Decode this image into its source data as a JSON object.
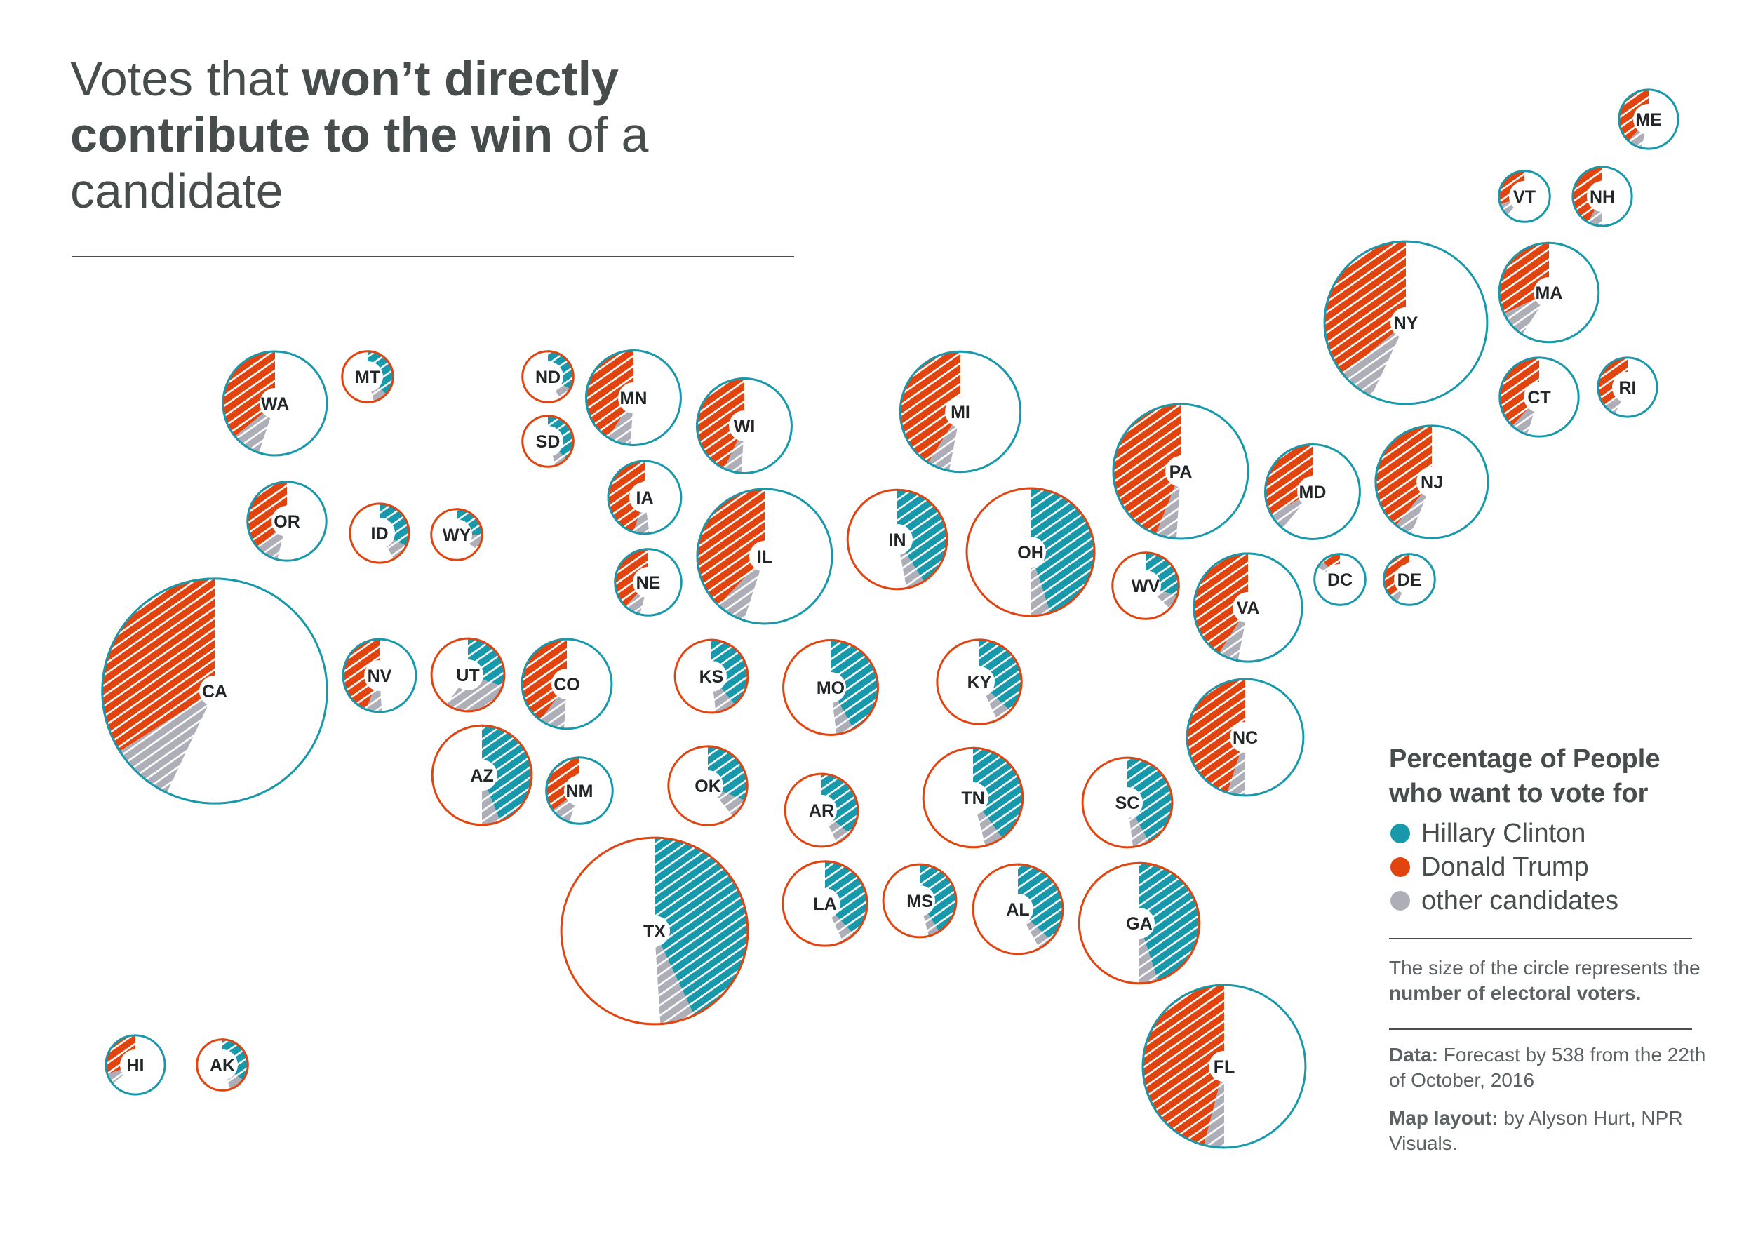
{
  "title": {
    "part1": "Votes that ",
    "bold": "won’t directly contribute to the win",
    "part2": " of a candidate"
  },
  "legend": {
    "title_line1": "Percentage of People",
    "title_line2": "who want to vote for",
    "items": [
      {
        "label": "Hillary Clinton",
        "color": "#1798ab"
      },
      {
        "label": "Donald Trump",
        "color": "#e2440f"
      },
      {
        "label": "other candidates",
        "color": "#adaeb7"
      }
    ]
  },
  "notes": {
    "size_plain": "The size of the circle represents the ",
    "size_bold": "number of electoral voters.",
    "data_label": "Data:",
    "data_text": " Forecast by 538 from the 22th of October, 2016",
    "layout_label": "Map layout:",
    "layout_text": " by Alyson Hurt, NPR Visuals."
  },
  "chart_data": {
    "type": "pie",
    "description_note": "Each circle is a state; its area represents electoral votes. The outline color is the forecast winner; the hatched slices show vote shares that would not count toward the win (loser's share plus other candidates). Values are approximate percentages read from the slices.",
    "colors": {
      "clinton": "#1798ab",
      "trump": "#e2440f",
      "other": "#adaeb7"
    },
    "states": [
      {
        "code": "ME",
        "ev": 4,
        "winner": "clinton",
        "clinton": 0,
        "trump": 38,
        "other": 8
      },
      {
        "code": "VT",
        "ev": 3,
        "winner": "clinton",
        "clinton": 0,
        "trump": 30,
        "other": 8
      },
      {
        "code": "NH",
        "ev": 4,
        "winner": "clinton",
        "clinton": 0,
        "trump": 42,
        "other": 8
      },
      {
        "code": "MA",
        "ev": 11,
        "winner": "clinton",
        "clinton": 0,
        "trump": 32,
        "other": 9
      },
      {
        "code": "NY",
        "ev": 29,
        "winner": "clinton",
        "clinton": 0,
        "trump": 36,
        "other": 7
      },
      {
        "code": "CT",
        "ev": 7,
        "winner": "clinton",
        "clinton": 0,
        "trump": 38,
        "other": 7
      },
      {
        "code": "RI",
        "ev": 4,
        "winner": "clinton",
        "clinton": 0,
        "trump": 36,
        "other": 7
      },
      {
        "code": "WA",
        "ev": 12,
        "winner": "clinton",
        "clinton": 0,
        "trump": 36,
        "other": 9
      },
      {
        "code": "MT",
        "ev": 3,
        "winner": "trump",
        "clinton": 37,
        "trump": 0,
        "other": 9
      },
      {
        "code": "ND",
        "ev": 3,
        "winner": "trump",
        "clinton": 33,
        "trump": 0,
        "other": 9
      },
      {
        "code": "SD",
        "ev": 3,
        "winner": "trump",
        "clinton": 37,
        "trump": 0,
        "other": 8
      },
      {
        "code": "MN",
        "ev": 10,
        "winner": "clinton",
        "clinton": 0,
        "trump": 41,
        "other": 8
      },
      {
        "code": "WI",
        "ev": 10,
        "winner": "clinton",
        "clinton": 0,
        "trump": 43,
        "other": 6
      },
      {
        "code": "MI",
        "ev": 16,
        "winner": "clinton",
        "clinton": 0,
        "trump": 41,
        "other": 6
      },
      {
        "code": "PA",
        "ev": 20,
        "winner": "clinton",
        "clinton": 0,
        "trump": 44,
        "other": 5
      },
      {
        "code": "MD",
        "ev": 10,
        "winner": "clinton",
        "clinton": 0,
        "trump": 33,
        "other": 6
      },
      {
        "code": "NJ",
        "ev": 14,
        "winner": "clinton",
        "clinton": 0,
        "trump": 39,
        "other": 5
      },
      {
        "code": "OR",
        "ev": 7,
        "winner": "clinton",
        "clinton": 0,
        "trump": 37,
        "other": 9
      },
      {
        "code": "ID",
        "ev": 4,
        "winner": "trump",
        "clinton": 32,
        "trump": 0,
        "other": 10
      },
      {
        "code": "WY",
        "ev": 3,
        "winner": "trump",
        "clinton": 25,
        "trump": 0,
        "other": 10
      },
      {
        "code": "IA",
        "ev": 6,
        "winner": "clinton",
        "clinton": 0,
        "trump": 45,
        "other": 7
      },
      {
        "code": "NE",
        "ev": 5,
        "winner": "clinton",
        "clinton": 0,
        "trump": 38,
        "other": 8
      },
      {
        "code": "IL",
        "ev": 20,
        "winner": "clinton",
        "clinton": 0,
        "trump": 38,
        "other": 7
      },
      {
        "code": "IN",
        "ev": 11,
        "winner": "trump",
        "clinton": 41,
        "trump": 0,
        "other": 6
      },
      {
        "code": "OH",
        "ev": 18,
        "winner": "trump",
        "clinton": 45,
        "trump": 0,
        "other": 5
      },
      {
        "code": "WV",
        "ev": 5,
        "winner": "trump",
        "clinton": 30,
        "trump": 0,
        "other": 7
      },
      {
        "code": "VA",
        "ev": 13,
        "winner": "clinton",
        "clinton": 0,
        "trump": 41,
        "other": 6
      },
      {
        "code": "DC",
        "ev": 3,
        "winner": "clinton",
        "clinton": 0,
        "trump": 12,
        "other": 5
      },
      {
        "code": "DE",
        "ev": 3,
        "winner": "clinton",
        "clinton": 0,
        "trump": 36,
        "other": 6
      },
      {
        "code": "CA",
        "ev": 55,
        "winner": "clinton",
        "clinton": 0,
        "trump": 34,
        "other": 9
      },
      {
        "code": "NV",
        "ev": 6,
        "winner": "clinton",
        "clinton": 0,
        "trump": 44,
        "other": 7
      },
      {
        "code": "UT",
        "ev": 6,
        "winner": "trump",
        "clinton": 30,
        "trump": 0,
        "other": 30
      },
      {
        "code": "CO",
        "ev": 9,
        "winner": "clinton",
        "clinton": 0,
        "trump": 40,
        "other": 9
      },
      {
        "code": "KS",
        "ev": 6,
        "winner": "trump",
        "clinton": 39,
        "trump": 0,
        "other": 9
      },
      {
        "code": "MO",
        "ev": 10,
        "winner": "trump",
        "clinton": 42,
        "trump": 0,
        "other": 6
      },
      {
        "code": "KY",
        "ev": 8,
        "winner": "trump",
        "clinton": 37,
        "trump": 0,
        "other": 6
      },
      {
        "code": "NC",
        "ev": 15,
        "winner": "clinton",
        "clinton": 0,
        "trump": 45,
        "other": 5
      },
      {
        "code": "AZ",
        "ev": 11,
        "winner": "trump",
        "clinton": 44,
        "trump": 0,
        "other": 6
      },
      {
        "code": "NM",
        "ev": 5,
        "winner": "clinton",
        "clinton": 0,
        "trump": 35,
        "other": 10
      },
      {
        "code": "OK",
        "ev": 7,
        "winner": "trump",
        "clinton": 31,
        "trump": 0,
        "other": 8
      },
      {
        "code": "AR",
        "ev": 6,
        "winner": "trump",
        "clinton": 36,
        "trump": 0,
        "other": 7
      },
      {
        "code": "TN",
        "ev": 11,
        "winner": "trump",
        "clinton": 40,
        "trump": 0,
        "other": 6
      },
      {
        "code": "SC",
        "ev": 9,
        "winner": "trump",
        "clinton": 42,
        "trump": 0,
        "other": 6
      },
      {
        "code": "TX",
        "ev": 38,
        "winner": "trump",
        "clinton": 43,
        "trump": 0,
        "other": 6
      },
      {
        "code": "LA",
        "ev": 8,
        "winner": "trump",
        "clinton": 38,
        "trump": 0,
        "other": 5
      },
      {
        "code": "MS",
        "ev": 6,
        "winner": "trump",
        "clinton": 41,
        "trump": 0,
        "other": 5
      },
      {
        "code": "AL",
        "ev": 9,
        "winner": "trump",
        "clinton": 37,
        "trump": 0,
        "other": 5
      },
      {
        "code": "GA",
        "ev": 16,
        "winner": "trump",
        "clinton": 45,
        "trump": 0,
        "other": 5
      },
      {
        "code": "FL",
        "ev": 29,
        "winner": "clinton",
        "clinton": 0,
        "trump": 46,
        "other": 4
      },
      {
        "code": "HI",
        "ev": 4,
        "winner": "clinton",
        "clinton": 0,
        "trump": 30,
        "other": 6
      },
      {
        "code": "AK",
        "ev": 3,
        "winner": "trump",
        "clinton": 35,
        "trump": 0,
        "other": 10
      }
    ]
  }
}
